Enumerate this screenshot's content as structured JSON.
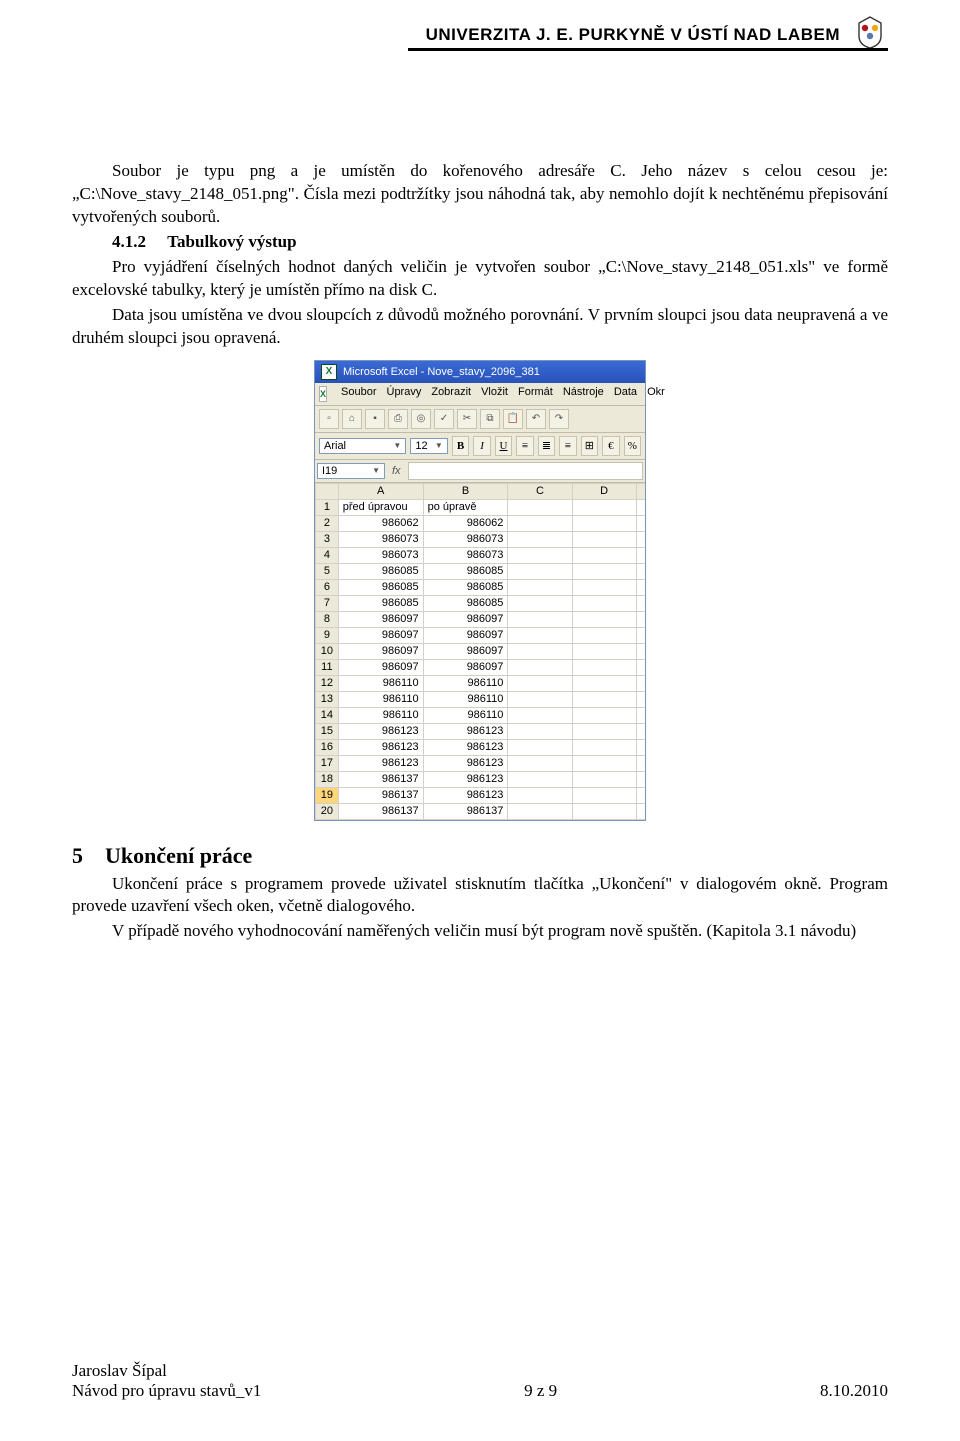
{
  "header": {
    "university": "UNIVERZITA J. E. PURKYNĚ V ÚSTÍ NAD LABEM",
    "logo_colors": [
      "#b01818",
      "#f0a818",
      "#5878b0"
    ]
  },
  "body": {
    "p1": "Soubor je typu png a je umístěn do kořenového adresáře C. Jeho název s celou cesou je: „C:\\Nove_stavy_2148_051.png\". Čísla mezi podtržítky jsou náhodná tak, aby nemohlo dojít k nechtěnému přepisování vytvořených souborů.",
    "sec412_num": "4.1.2",
    "sec412_title": "Tabulkový výstup",
    "p2": "Pro vyjádření číselných hodnot daných veličin je vytvořen soubor „C:\\Nove_stavy_2148_051.xls\" ve formě excelovské tabulky, který je umístěn přímo na disk C.",
    "p3": "Data jsou umístěna ve dvou sloupcích z důvodů možného porovnání. V prvním sloupci jsou data neupravená a ve druhém sloupci jsou opravená.",
    "h5_num": "5",
    "h5_title": "Ukončení práce",
    "p4": "Ukončení práce s programem provede uživatel stisknutím tlačítka „Ukončení\" v dialogovém okně. Program provede uzavření všech oken, včetně dialogového.",
    "p5": "V případě nového vyhodnocování naměřených veličin musí být program nově spuštěn. (Kapitola 3.1 návodu)"
  },
  "excel": {
    "app_title": "Microsoft Excel - Nove_stavy_2096_381",
    "menus": [
      "Soubor",
      "Úpravy",
      "Zobrazit",
      "Vložit",
      "Formát",
      "Nástroje",
      "Data",
      "Okr"
    ],
    "font_name": "Arial",
    "font_size": "12",
    "namebox": "I19",
    "selected_row": 19,
    "col_headers": [
      "A",
      "B",
      "C",
      "D",
      ""
    ],
    "header_row": [
      "před úpravou",
      "po úpravě"
    ],
    "rows": [
      [
        986062,
        986062
      ],
      [
        986073,
        986073
      ],
      [
        986073,
        986073
      ],
      [
        986085,
        986085
      ],
      [
        986085,
        986085
      ],
      [
        986085,
        986085
      ],
      [
        986097,
        986097
      ],
      [
        986097,
        986097
      ],
      [
        986097,
        986097
      ],
      [
        986097,
        986097
      ],
      [
        986110,
        986110
      ],
      [
        986110,
        986110
      ],
      [
        986110,
        986110
      ],
      [
        986123,
        986123
      ],
      [
        986123,
        986123
      ],
      [
        986123,
        986123
      ],
      [
        986137,
        986123
      ],
      [
        986137,
        986123
      ],
      [
        986137,
        986137
      ]
    ]
  },
  "footer": {
    "author": "Jaroslav Šípal",
    "doc": "Návod pro úpravu stavů_v1",
    "page": "9 z 9",
    "date": "8.10.2010"
  }
}
